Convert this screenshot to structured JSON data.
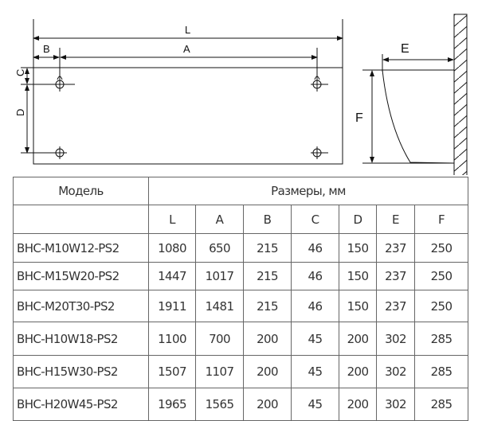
{
  "drawing": {
    "labels": {
      "L": "L",
      "A": "A",
      "B": "B",
      "C": "C",
      "D": "D",
      "E": "E",
      "F": "F"
    }
  },
  "table": {
    "header_model": "Модель",
    "header_dims": "Размеры, мм",
    "columns": [
      "L",
      "A",
      "B",
      "C",
      "D",
      "E",
      "F"
    ],
    "rows": [
      {
        "model": "BHC-M10W12-PS2",
        "values": [
          "1080",
          "650",
          "215",
          "46",
          "150",
          "237",
          "250"
        ]
      },
      {
        "model": "BHC-M15W20-PS2",
        "values": [
          "1447",
          "1017",
          "215",
          "46",
          "150",
          "237",
          "250"
        ]
      },
      {
        "model": "BHC-M20T30-PS2",
        "values": [
          "1911",
          "1481",
          "215",
          "46",
          "150",
          "237",
          "250"
        ]
      },
      {
        "model": "BHC-H10W18-PS2",
        "values": [
          "1100",
          "700",
          "200",
          "45",
          "200",
          "302",
          "285"
        ]
      },
      {
        "model": "BHC-H15W30-PS2",
        "values": [
          "1507",
          "1107",
          "200",
          "45",
          "200",
          "302",
          "285"
        ]
      },
      {
        "model": "BHC-H20W45-PS2",
        "values": [
          "1965",
          "1565",
          "200",
          "45",
          "200",
          "302",
          "285"
        ]
      }
    ]
  }
}
